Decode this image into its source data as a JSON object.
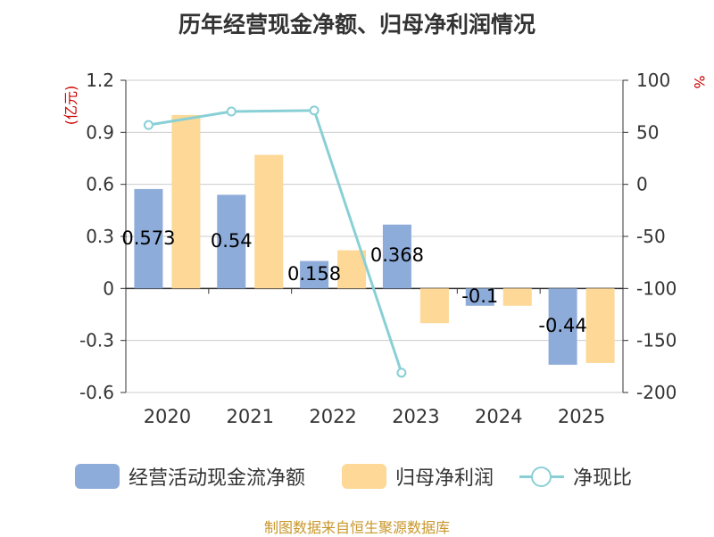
{
  "title": "历年经营现金净额、归母净利润情况",
  "source": "制图数据来自恒生聚源数据库",
  "colors": {
    "operating_cash_flow": "#8eacd9",
    "net_profit": "#fdd896",
    "ratio": "#89d0d6",
    "grid": "#cccccc",
    "axis_text": "#333333",
    "unit_text": "#cc0000"
  },
  "chart_data": {
    "type": "bar+line",
    "categories": [
      "2020",
      "2021",
      "2022",
      "2023",
      "2024",
      "2025"
    ],
    "left_axis": {
      "label": "(亿元)",
      "ticks": [
        "1.2",
        "0.9",
        "0.6",
        "0.3",
        "0",
        "-0.3",
        "-0.6"
      ],
      "ylim": [
        -0.6,
        1.2
      ]
    },
    "right_axis": {
      "label": "%",
      "ticks": [
        "100",
        "50",
        "0",
        "-50",
        "-100",
        "-150",
        "-200"
      ],
      "ylim": [
        -200,
        100
      ]
    },
    "series": [
      {
        "name": "经营活动现金流净额",
        "kind": "bar",
        "axis": "left",
        "values": [
          0.573,
          0.54,
          0.158,
          0.368,
          -0.1,
          -0.44
        ],
        "labels": [
          "0.573",
          "0.54",
          "0.158",
          "0.368",
          "-0.1",
          "-0.44"
        ]
      },
      {
        "name": "归母净利润",
        "kind": "bar",
        "axis": "left",
        "values": [
          1.0,
          0.77,
          0.22,
          -0.2,
          -0.1,
          -0.43
        ]
      },
      {
        "name": "净现比",
        "kind": "line",
        "axis": "right",
        "values": [
          57,
          70,
          71,
          -181,
          null,
          null
        ]
      }
    ]
  },
  "legend": {
    "items": [
      "经营活动现金流净额",
      "归母净利润",
      "净现比"
    ]
  }
}
